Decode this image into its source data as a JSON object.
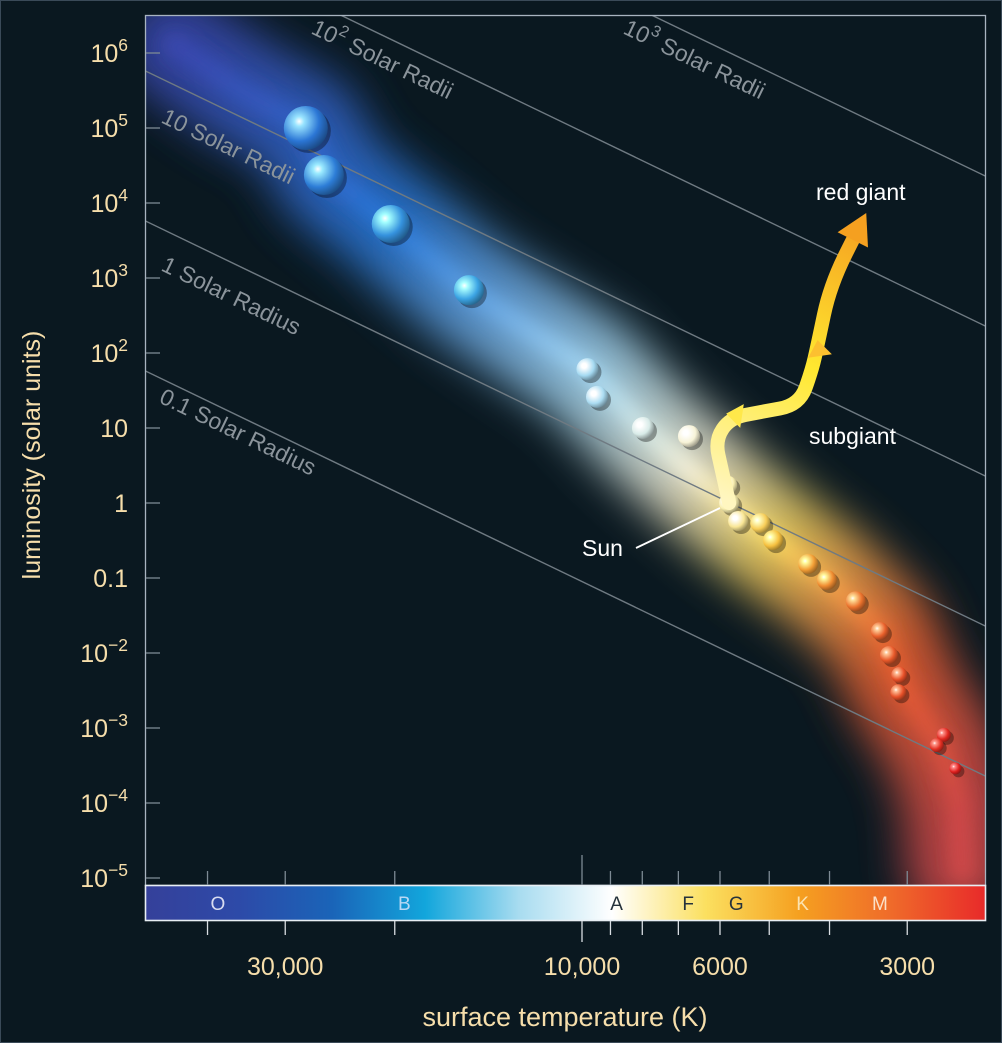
{
  "chart_data": {
    "type": "scatter",
    "title": "",
    "xlabel": "surface temperature (K)",
    "ylabel": "luminosity (solar units)",
    "x_scale": "log, reversed (hot to cool)",
    "y_scale": "log",
    "xlim": [
      50000,
      2250
    ],
    "ylim": [
      8e-06,
      3000000
    ],
    "grid": false,
    "x_ticks": {
      "labeled": [
        {
          "value": 30000,
          "label": "30,000"
        },
        {
          "value": 10000,
          "label": "10,000"
        },
        {
          "value": 6000,
          "label": "6000"
        },
        {
          "value": 3000,
          "label": "3000"
        }
      ],
      "minor": [
        40000,
        20000,
        9000,
        8000,
        7000,
        5000,
        4000
      ]
    },
    "y_ticks": [
      {
        "value": 1000000,
        "base": "10",
        "exp": "6"
      },
      {
        "value": 100000,
        "base": "10",
        "exp": "5"
      },
      {
        "value": 10000,
        "base": "10",
        "exp": "4"
      },
      {
        "value": 1000,
        "base": "10",
        "exp": "3"
      },
      {
        "value": 100,
        "base": "10",
        "exp": "2"
      },
      {
        "value": 10,
        "base": "10",
        "exp": ""
      },
      {
        "value": 1,
        "base": "1",
        "exp": ""
      },
      {
        "value": 0.1,
        "base": "0.1",
        "exp": ""
      },
      {
        "value": 0.01,
        "base": "10",
        "exp": "−2"
      },
      {
        "value": 0.001,
        "base": "10",
        "exp": "−3"
      },
      {
        "value": 0.0001,
        "base": "10",
        "exp": "−4"
      },
      {
        "value": 1e-05,
        "base": "10",
        "exp": "−5"
      }
    ],
    "spectral_classes": [
      {
        "label": "O",
        "temperature": 38500,
        "text_color": "#d8dcf0"
      },
      {
        "label": "B",
        "temperature": 19300,
        "text_color": "#b8d8f4"
      },
      {
        "label": "A",
        "temperature": 8800,
        "text_color": "#26333c"
      },
      {
        "label": "F",
        "temperature": 6750,
        "text_color": "#26333c"
      },
      {
        "label": "G",
        "temperature": 5650,
        "text_color": "#26333c"
      },
      {
        "label": "K",
        "temperature": 4420,
        "text_color": "#fbe3b0"
      },
      {
        "label": "M",
        "temperature": 3320,
        "text_color": "#fbe0c8"
      }
    ],
    "spectral_bar_colors": [
      "#35409a",
      "#2d4aa8",
      "#1a64b8",
      "#12a6dc",
      "#a8dcf0",
      "#ffffff",
      "#fbe060",
      "#f5a020",
      "#ef6a2a",
      "#e82a2a"
    ],
    "radius_lines": [
      {
        "radius": 0.1,
        "base": "0.1",
        "exp": "",
        "text": " Solar Radius"
      },
      {
        "radius": 1,
        "base": "1",
        "exp": "",
        "text": " Solar Radius"
      },
      {
        "radius": 10,
        "base": "10",
        "exp": "",
        "text": " Solar Radii"
      },
      {
        "radius": 100,
        "base": "10",
        "exp": "2",
        "text": " Solar Radii"
      },
      {
        "radius": 1000,
        "base": "10",
        "exp": "3",
        "text": " Solar Radii"
      }
    ],
    "stars": [
      {
        "temperature": 27800,
        "luminosity": 100000
      },
      {
        "temperature": 26000,
        "luminosity": 23600
      },
      {
        "temperature": 20300,
        "luminosity": 5250
      },
      {
        "temperature": 15200,
        "luminosity": 690
      },
      {
        "temperature": 9800,
        "luminosity": 61
      },
      {
        "temperature": 9460,
        "luminosity": 26
      },
      {
        "temperature": 7980,
        "luminosity": 10
      },
      {
        "temperature": 6730,
        "luminosity": 7.8
      },
      {
        "temperature": 5820,
        "luminosity": 1.74
      },
      {
        "temperature": 5800,
        "luminosity": 1,
        "label": "Sun"
      },
      {
        "temperature": 5610,
        "luminosity": 0.575
      },
      {
        "temperature": 5170,
        "luminosity": 0.54
      },
      {
        "temperature": 4930,
        "luminosity": 0.32
      },
      {
        "temperature": 4330,
        "luminosity": 0.154
      },
      {
        "temperature": 4040,
        "luminosity": 0.094
      },
      {
        "temperature": 3630,
        "luminosity": 0.049
      },
      {
        "temperature": 3320,
        "luminosity": 0.0196
      },
      {
        "temperature": 3210,
        "luminosity": 0.0094
      },
      {
        "temperature": 3090,
        "luminosity": 0.0051
      },
      {
        "temperature": 3100,
        "luminosity": 0.003
      },
      {
        "temperature": 2620,
        "luminosity": 0.00081
      },
      {
        "temperature": 2690,
        "luminosity": 0.00059
      },
      {
        "temperature": 2510,
        "luminosity": 0.00029
      }
    ],
    "evolution_track": {
      "points": [
        {
          "temperature": 5800,
          "luminosity": 1
        },
        {
          "temperature": 5960,
          "luminosity": 2.75
        },
        {
          "temperature": 6110,
          "luminosity": 6.9
        },
        {
          "temperature": 5780,
          "luminosity": 13.6
        },
        {
          "temperature": 5170,
          "luminosity": 16.3
        },
        {
          "temperature": 4470,
          "luminosity": 20.3
        },
        {
          "temperature": 4270,
          "luminosity": 59
        },
        {
          "temperature": 4180,
          "luminosity": 128
        },
        {
          "temperature": 3990,
          "luminosity": 807
        },
        {
          "temperature": 3550,
          "luminosity": 5580
        }
      ],
      "colors": [
        "#fff6c0",
        "#ffe830",
        "#f5a020"
      ]
    },
    "annotations": {
      "sun": "Sun",
      "subgiant": "subgiant",
      "red_giant": "red giant"
    }
  }
}
